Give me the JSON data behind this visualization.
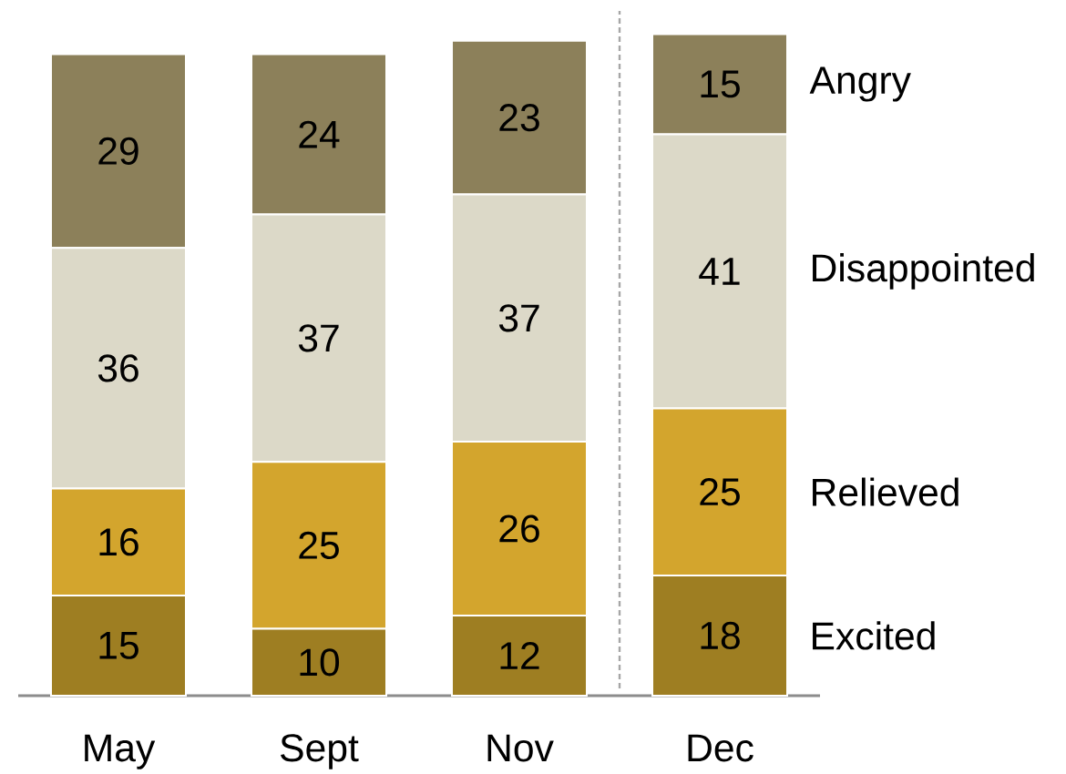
{
  "chart_data": {
    "type": "bar",
    "stacked": true,
    "data_labels": true,
    "categories": [
      "May",
      "Sept",
      "Nov",
      "Dec"
    ],
    "series": [
      {
        "name": "Excited",
        "color": "#9e7e22",
        "values": [
          15,
          10,
          12,
          18
        ]
      },
      {
        "name": "Relieved",
        "color": "#d3a52d",
        "values": [
          16,
          25,
          26,
          25
        ]
      },
      {
        "name": "Disappointed",
        "color": "#dcd9c8",
        "values": [
          36,
          37,
          37,
          41
        ]
      },
      {
        "name": "Angry",
        "color": "#8c805a",
        "values": [
          29,
          24,
          23,
          15
        ]
      }
    ]
  }
}
